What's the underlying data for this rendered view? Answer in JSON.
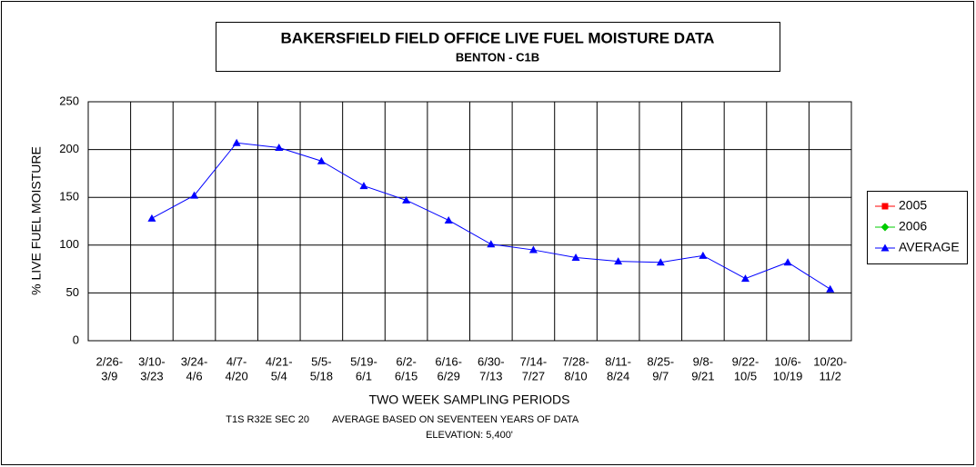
{
  "chart_data": {
    "type": "line",
    "title": "BAKERSFIELD FIELD OFFICE  LIVE FUEL MOISTURE DATA",
    "subtitle": "BENTON - C1B",
    "x_label": "TWO WEEK SAMPLING PERIODS",
    "y_label": "% LIVE FUEL MOISTURE",
    "notes": [
      "T1S R32E SEC 20",
      "AVERAGE BASED ON SEVENTEEN YEARS OF DATA",
      "ELEVATION: 5,400'"
    ],
    "categories": [
      [
        "2/26-",
        "3/9"
      ],
      [
        "3/10-",
        "3/23"
      ],
      [
        "3/24-",
        "4/6"
      ],
      [
        "4/7-",
        "4/20"
      ],
      [
        "4/21-",
        "5/4"
      ],
      [
        "5/5-",
        "5/18"
      ],
      [
        "5/19-",
        "6/1"
      ],
      [
        "6/2-",
        "6/15"
      ],
      [
        "6/16-",
        "6/29"
      ],
      [
        "6/30-",
        "7/13"
      ],
      [
        "7/14-",
        "7/27"
      ],
      [
        "7/28-",
        "8/10"
      ],
      [
        "8/11-",
        "8/24"
      ],
      [
        "8/25-",
        "9/7"
      ],
      [
        "9/8-",
        "9/21"
      ],
      [
        "9/22-",
        "10/5"
      ],
      [
        "10/6-",
        "10/19"
      ],
      [
        "10/20-",
        "11/2"
      ]
    ],
    "series": [
      {
        "name": "2005",
        "color": "#ff0000",
        "marker": "square",
        "values": [
          null,
          null,
          null,
          null,
          null,
          null,
          null,
          null,
          null,
          null,
          null,
          null,
          null,
          null,
          null,
          null,
          null,
          null
        ]
      },
      {
        "name": "2006",
        "color": "#00cc00",
        "marker": "diamond",
        "values": [
          null,
          null,
          null,
          null,
          null,
          null,
          null,
          null,
          null,
          null,
          null,
          null,
          null,
          null,
          null,
          null,
          null,
          null
        ]
      },
      {
        "name": "AVERAGE",
        "color": "#0000ff",
        "marker": "triangle",
        "values": [
          null,
          128,
          152,
          207,
          202,
          188,
          162,
          147,
          126,
          101,
          95,
          87,
          83,
          82,
          89,
          65,
          82,
          54
        ]
      }
    ],
    "ylim": [
      0,
      250
    ],
    "yticks": [
      0,
      50,
      100,
      150,
      200,
      250
    ],
    "grid": true,
    "legend": "right"
  }
}
